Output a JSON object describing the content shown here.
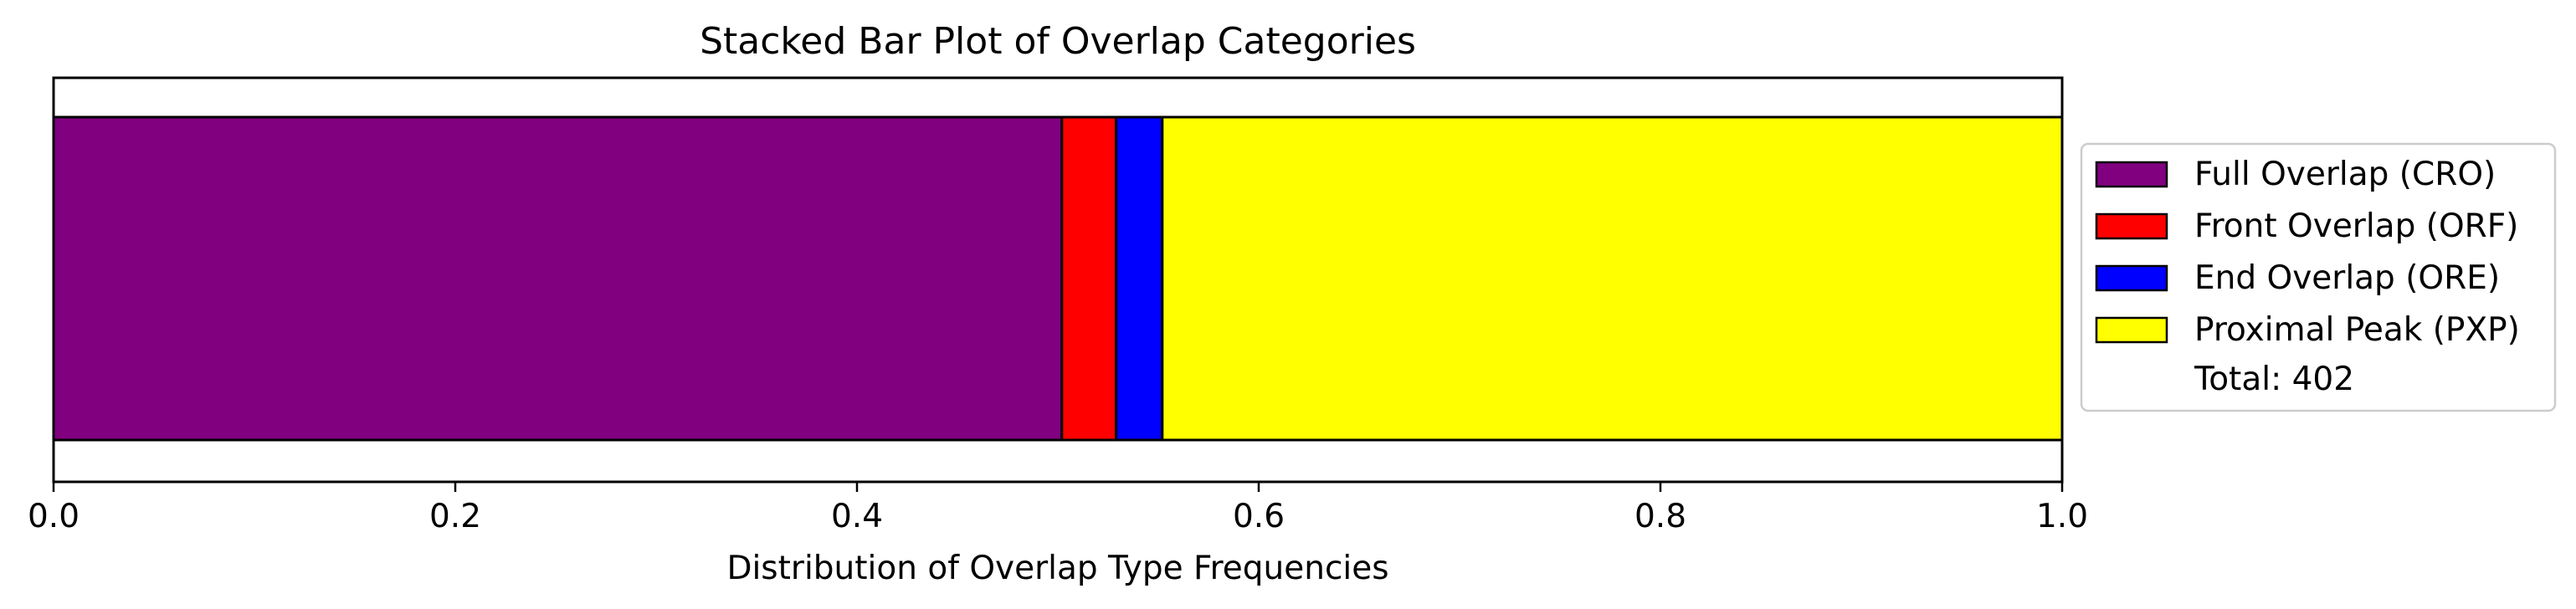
{
  "chart_data": {
    "type": "bar",
    "orientation": "horizontal",
    "stacked": true,
    "title": "Stacked Bar Plot of Overlap Categories",
    "xlabel": "Distribution of Overlap Type Frequencies",
    "ylabel": "",
    "xlim": [
      0.0,
      1.0
    ],
    "x_ticks": [
      "0.0",
      "0.2",
      "0.4",
      "0.6",
      "0.8",
      "1.0"
    ],
    "y_ticks_visible": false,
    "grid": false,
    "legend_position": "center-right outside",
    "series": [
      {
        "name": "Full Overlap (CRO)",
        "value": 0.502,
        "color": "#800080"
      },
      {
        "name": "Front Overlap (ORF)",
        "value": 0.027,
        "color": "#ff0000"
      },
      {
        "name": "End Overlap (ORE)",
        "value": 0.023,
        "color": "#0000ff"
      },
      {
        "name": "Proximal Peak (PXP)",
        "value": 0.448,
        "color": "#ffff00"
      }
    ],
    "legend_note": "Total: 402"
  }
}
